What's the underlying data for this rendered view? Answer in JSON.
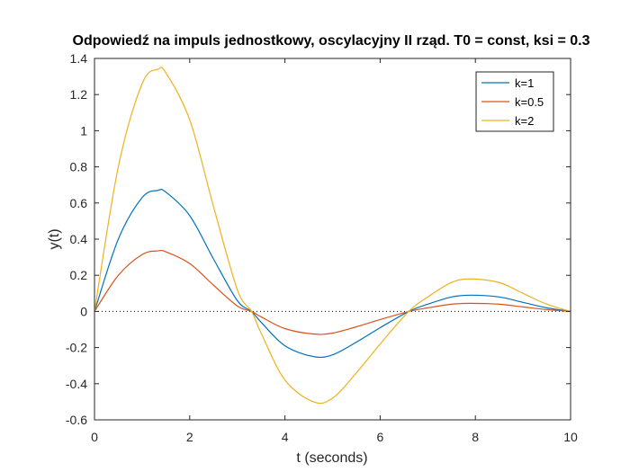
{
  "chart_data": {
    "type": "line",
    "title": "Odpowiedź na impuls jednostkowy, oscylacyjny II rząd. T0 = const, ksi = 0.3",
    "xlabel": "t (seconds)",
    "ylabel": "y(t)",
    "xlim": [
      0,
      10
    ],
    "ylim": [
      -0.6,
      1.4
    ],
    "xticks": [
      0,
      2,
      4,
      6,
      8,
      10
    ],
    "xtick_labels": [
      "0",
      "2",
      "4",
      "6",
      "8",
      "10"
    ],
    "yticks": [
      -0.6,
      -0.4,
      -0.2,
      0,
      0.2,
      0.4,
      0.6,
      0.8,
      1,
      1.2,
      1.4
    ],
    "ytick_labels": [
      "-0.6",
      "-0.4",
      "-0.2",
      "0",
      "0.2",
      "0.4",
      "0.6",
      "0.8",
      "1",
      "1.2",
      "1.4"
    ],
    "grid": false,
    "legend_position": "top-right",
    "reference_line": {
      "y": 0,
      "style": "dotted"
    },
    "x": [
      0,
      0.5,
      1,
      1.33,
      1.5,
      2,
      2.5,
      3,
      3.3,
      3.5,
      4,
      4.6,
      5,
      5.5,
      6,
      6.6,
      7,
      7.5,
      7.9,
      8.5,
      9,
      9.5,
      10
    ],
    "series": [
      {
        "name": "k=1",
        "color": "#0072BD",
        "values": [
          0,
          0.4,
          0.63,
          0.67,
          0.66,
          0.53,
          0.29,
          0.06,
          0,
          -0.06,
          -0.19,
          -0.25,
          -0.24,
          -0.17,
          -0.09,
          0,
          0.04,
          0.08,
          0.09,
          0.08,
          0.05,
          0.02,
          0
        ]
      },
      {
        "name": "k=0.5",
        "color": "#D95319",
        "values": [
          0,
          0.2,
          0.315,
          0.335,
          0.33,
          0.265,
          0.145,
          0.03,
          0,
          -0.03,
          -0.095,
          -0.125,
          -0.12,
          -0.085,
          -0.045,
          0,
          0.02,
          0.04,
          0.045,
          0.04,
          0.025,
          0.01,
          0
        ]
      },
      {
        "name": "k=2",
        "color": "#EDB120",
        "values": [
          0,
          0.8,
          1.26,
          1.34,
          1.32,
          1.06,
          0.58,
          0.12,
          0,
          -0.12,
          -0.38,
          -0.5,
          -0.48,
          -0.34,
          -0.18,
          0,
          0.08,
          0.16,
          0.18,
          0.16,
          0.1,
          0.04,
          0
        ]
      }
    ]
  }
}
